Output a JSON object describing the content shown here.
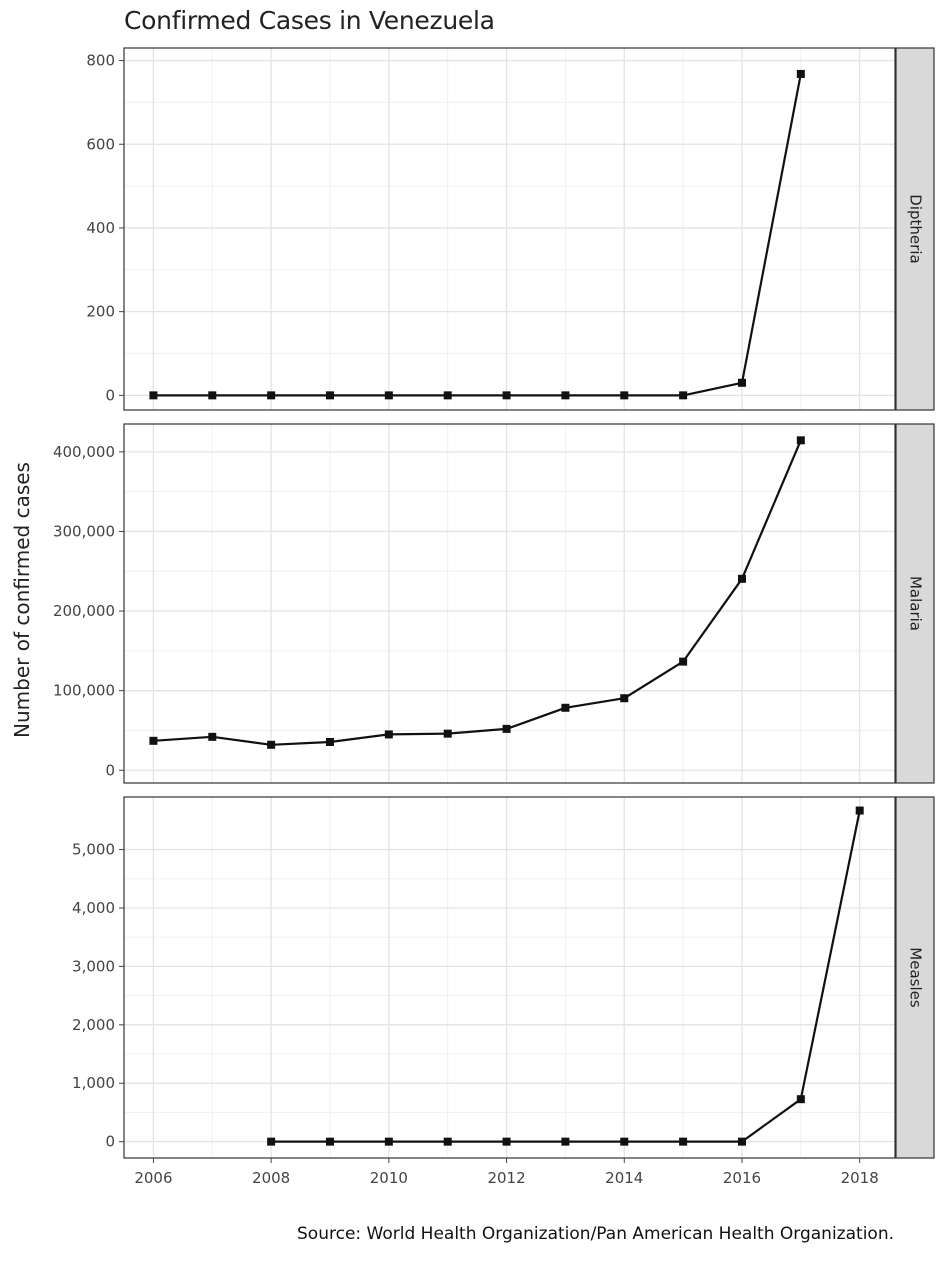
{
  "chart_data": {
    "type": "line",
    "title": "Confirmed Cases in Venezuela",
    "ylabel": "Number of confirmed cases",
    "xlabel": "",
    "source": "Source: World Health Organization/Pan American Health Organization.",
    "xlim": [
      2005.5,
      2018.6
    ],
    "x_ticks": [
      2006,
      2008,
      2010,
      2012,
      2014,
      2016,
      2018
    ],
    "x_tick_labels": [
      "2006",
      "2008",
      "2010",
      "2012",
      "2014",
      "2016",
      "2018"
    ],
    "grid": true,
    "legend": "none",
    "line_color": "#111111",
    "panels": [
      {
        "name": "Diptheria",
        "ylim": [
          -35,
          830
        ],
        "y_ticks": [
          0,
          200,
          400,
          600,
          800
        ],
        "y_tick_labels": [
          "0",
          "200",
          "400",
          "600",
          "800"
        ],
        "x": [
          2006,
          2007,
          2008,
          2009,
          2010,
          2011,
          2012,
          2013,
          2014,
          2015,
          2016,
          2017
        ],
        "values": [
          0,
          0,
          0,
          0,
          0,
          0,
          0,
          0,
          0,
          0,
          30,
          768
        ]
      },
      {
        "name": "Malaria",
        "ylim": [
          -16000,
          435000
        ],
        "y_ticks": [
          0,
          100000,
          200000,
          300000,
          400000
        ],
        "y_tick_labels": [
          "0",
          "100,000",
          "200,000",
          "300,000",
          "400,000"
        ],
        "x": [
          2006,
          2007,
          2008,
          2009,
          2010,
          2011,
          2012,
          2013,
          2014,
          2015,
          2016,
          2017
        ],
        "values": [
          37000,
          42000,
          32000,
          35500,
          45000,
          46000,
          52000,
          78500,
          90500,
          136500,
          240500,
          414500
        ]
      },
      {
        "name": "Measles",
        "ylim": [
          -280,
          5900
        ],
        "y_ticks": [
          0,
          1000,
          2000,
          3000,
          4000,
          5000
        ],
        "y_tick_labels": [
          "0",
          "1,000",
          "2,000",
          "3,000",
          "4,000",
          "5,000"
        ],
        "x": [
          2008,
          2009,
          2010,
          2011,
          2012,
          2013,
          2014,
          2015,
          2016,
          2017,
          2018
        ],
        "values": [
          0,
          0,
          0,
          0,
          0,
          0,
          0,
          0,
          0,
          727,
          5668
        ]
      }
    ]
  }
}
